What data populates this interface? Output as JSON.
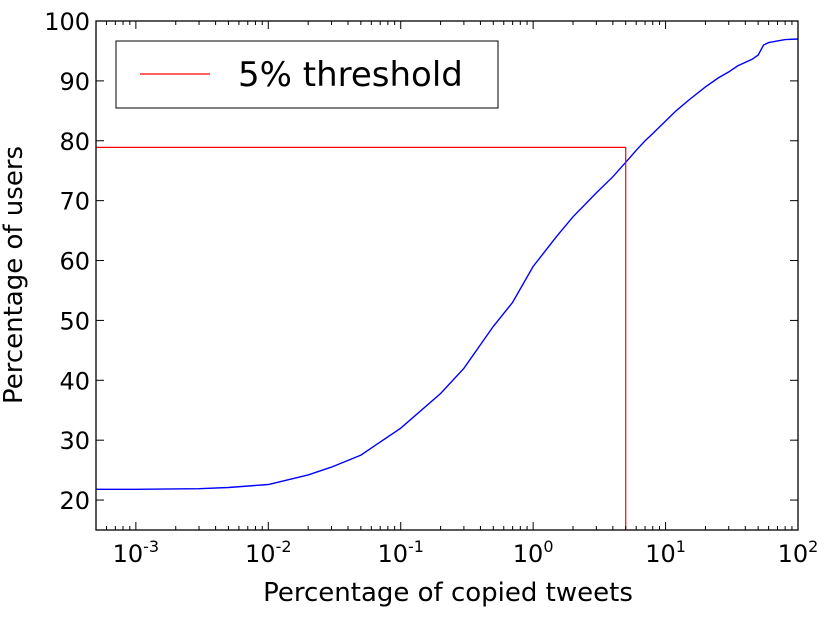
{
  "chart_data": {
    "type": "line",
    "title": "",
    "xlabel": "Percentage of copied tweets",
    "ylabel": "Percentage of users",
    "xscale": "log",
    "xlim": [
      0.0005,
      100
    ],
    "ylim": [
      15,
      100
    ],
    "x_ticks": [
      {
        "value": 0.001,
        "base": "10",
        "exp": "-3"
      },
      {
        "value": 0.01,
        "base": "10",
        "exp": "-2"
      },
      {
        "value": 0.1,
        "base": "10",
        "exp": "-1"
      },
      {
        "value": 1,
        "base": "10",
        "exp": "0"
      },
      {
        "value": 10,
        "base": "10",
        "exp": "1"
      },
      {
        "value": 100,
        "base": "10",
        "exp": "2"
      }
    ],
    "y_ticks": [
      20,
      30,
      40,
      50,
      60,
      70,
      80,
      90,
      100
    ],
    "grid": false,
    "legend_position": "top-left",
    "series": [
      {
        "color": "#0000ff",
        "x": [
          0.0005,
          0.001,
          0.003,
          0.005,
          0.01,
          0.02,
          0.03,
          0.05,
          0.1,
          0.2,
          0.3,
          0.5,
          0.7,
          1,
          1.5,
          2,
          3,
          4,
          5,
          6,
          7,
          8,
          10,
          12,
          15,
          20,
          25,
          30,
          35,
          45,
          50,
          55,
          60,
          80,
          100
        ],
        "y": [
          21.8,
          21.8,
          21.9,
          22.1,
          22.6,
          24.2,
          25.5,
          27.5,
          32,
          37.8,
          42,
          49,
          53,
          59,
          64,
          67.3,
          71.3,
          74,
          76.4,
          78.4,
          80,
          81.2,
          83.3,
          85,
          86.8,
          89,
          90.5,
          91.5,
          92.5,
          93.6,
          94.3,
          96,
          96.4,
          96.9,
          97
        ]
      }
    ],
    "threshold": {
      "label": "5% threshold",
      "color": "#ff0000",
      "x": 5,
      "y": 78.9
    }
  }
}
